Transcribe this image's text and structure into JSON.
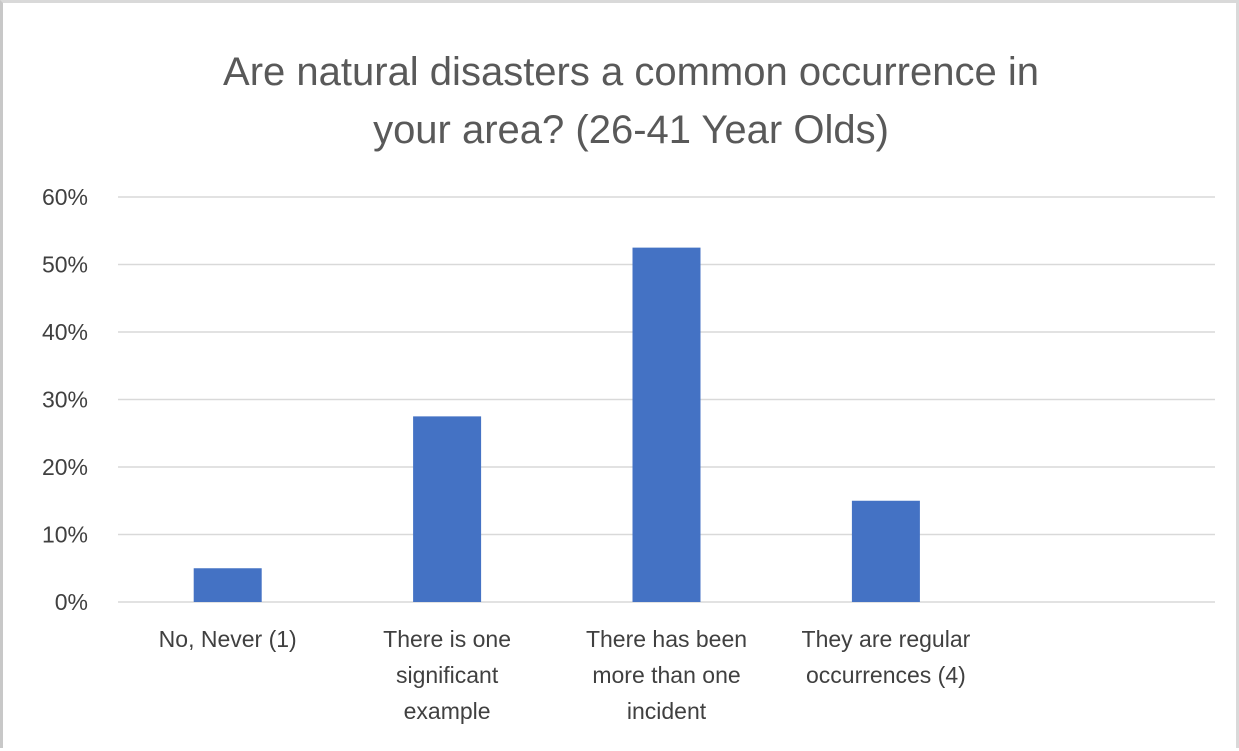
{
  "chart_data": {
    "type": "bar",
    "title_lines": [
      "Are natural disasters a common occurrence in",
      "your area? (26-41 Year Olds)"
    ],
    "categories": [
      [
        "No, Never (1)"
      ],
      [
        "There is one",
        "significant",
        "example"
      ],
      [
        "There has been",
        "more than one",
        "incident"
      ],
      [
        "They are regular",
        "occurrences (4)"
      ]
    ],
    "values": [
      5,
      27.5,
      52.5,
      15
    ],
    "ylim": [
      0,
      60
    ],
    "yticks": [
      "0%",
      "10%",
      "20%",
      "30%",
      "40%",
      "50%",
      "60%"
    ],
    "grid": true,
    "bar_color": "#4472c4"
  }
}
